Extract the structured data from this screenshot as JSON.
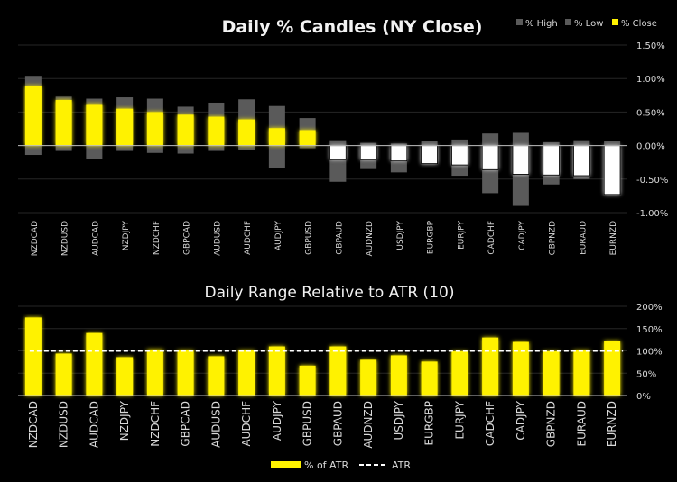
{
  "colors": {
    "high_low": "#5a5a5a",
    "close_up": "#fff200",
    "close_down": "#ffffff",
    "atr_line": "#ffffff",
    "grid": "#262626",
    "text": "#d9d9d9"
  },
  "chart_data": [
    {
      "type": "bar",
      "title": "Daily % Candles (NY Close)",
      "legend": {
        "placement": "top-right",
        "items": [
          "% High",
          "% Low",
          "% Close"
        ]
      },
      "categories": [
        "NZDCAD",
        "NZDUSD",
        "AUDCAD",
        "NZDJPY",
        "NZDCHF",
        "GBPCAD",
        "AUDUSD",
        "AUDCHF",
        "AUDJPY",
        "GBPUSD",
        "GBPAUD",
        "AUDNZD",
        "USDJPY",
        "EURGBP",
        "EURJPY",
        "CADCHF",
        "CADJPY",
        "GBPNZD",
        "EURAUD",
        "EURNZD"
      ],
      "series": [
        {
          "name": "% High",
          "values": [
            1.04,
            0.73,
            0.7,
            0.72,
            0.7,
            0.58,
            0.64,
            0.69,
            0.59,
            0.41,
            0.08,
            0.04,
            0.03,
            0.07,
            0.09,
            0.18,
            0.19,
            0.05,
            0.08,
            0.07
          ]
        },
        {
          "name": "% Low",
          "values": [
            -0.14,
            -0.08,
            -0.2,
            -0.08,
            -0.11,
            -0.12,
            -0.08,
            -0.06,
            -0.33,
            -0.04,
            -0.54,
            -0.35,
            -0.4,
            -0.27,
            -0.45,
            -0.71,
            -0.9,
            -0.58,
            -0.5,
            -0.73
          ]
        },
        {
          "name": "% Close",
          "values": [
            0.89,
            0.68,
            0.62,
            0.55,
            0.5,
            0.46,
            0.43,
            0.39,
            0.26,
            0.23,
            -0.21,
            -0.21,
            -0.23,
            -0.27,
            -0.29,
            -0.36,
            -0.43,
            -0.44,
            -0.45,
            -0.73
          ]
        }
      ],
      "ylim": [
        -1.0,
        1.5
      ],
      "yticks": [
        1.5,
        1.0,
        0.5,
        0.0,
        -0.5,
        -1.0
      ],
      "ytick_labels": [
        "1.50%",
        "1.00%",
        "0.50%",
        "0.00%",
        "-0.50%",
        "-1.00%"
      ],
      "grid": true,
      "yaxis_side": "right"
    },
    {
      "type": "bar",
      "title": "Daily Range Relative to ATR (10)",
      "legend": {
        "placement": "bottom",
        "items": [
          "% of ATR",
          "ATR"
        ]
      },
      "categories": [
        "NZDCAD",
        "NZDUSD",
        "AUDCAD",
        "NZDJPY",
        "NZDCHF",
        "GBPCAD",
        "AUDUSD",
        "AUDCHF",
        "AUDJPY",
        "GBPUSD",
        "GBPAUD",
        "AUDNZD",
        "USDJPY",
        "EURGBP",
        "EURJPY",
        "CADCHF",
        "CADJPY",
        "GBPNZD",
        "EURAUD",
        "EURNZD"
      ],
      "series": [
        {
          "name": "% of ATR",
          "values": [
            175,
            94,
            140,
            86,
            103,
            101,
            88,
            101,
            110,
            67,
            110,
            80,
            90,
            76,
            99,
            130,
            120,
            99,
            101,
            122
          ]
        },
        {
          "name": "ATR",
          "values": [
            100,
            100,
            100,
            100,
            100,
            100,
            100,
            100,
            100,
            100,
            100,
            100,
            100,
            100,
            100,
            100,
            100,
            100,
            100,
            100
          ]
        }
      ],
      "ylim": [
        0,
        200
      ],
      "yticks": [
        200,
        150,
        100,
        50,
        0
      ],
      "ytick_labels": [
        "200%",
        "150%",
        "100%",
        "50%",
        "0%"
      ],
      "grid": true,
      "yaxis_side": "right"
    }
  ]
}
